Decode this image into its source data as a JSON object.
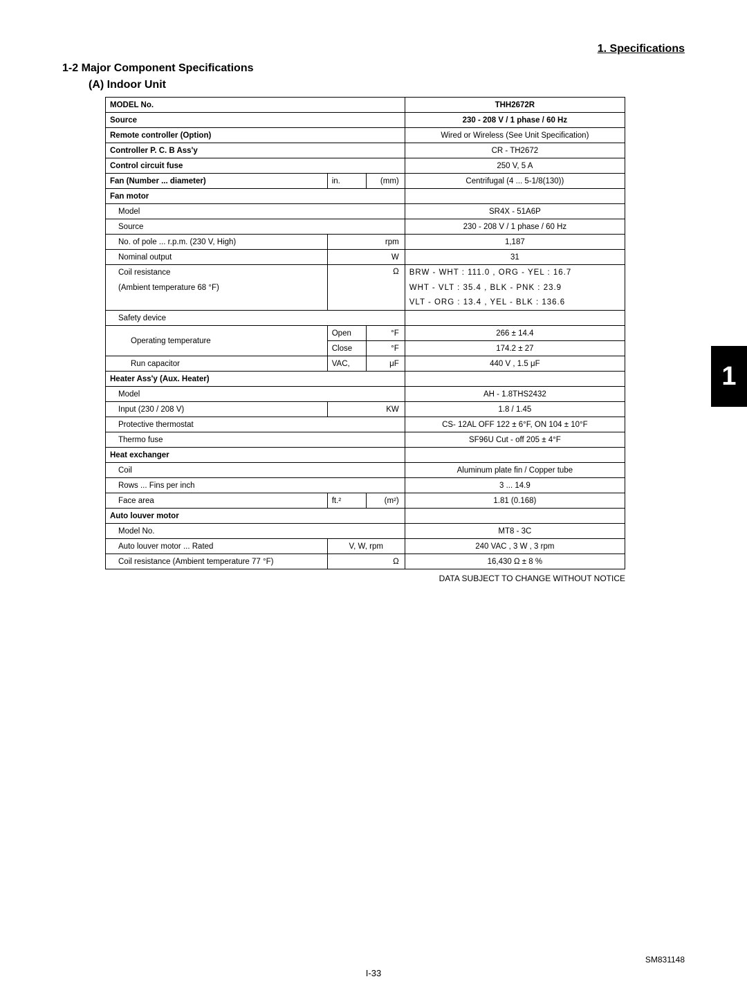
{
  "header": {
    "chapter": "1. Specifications",
    "section": "1-2   Major Component Specifications",
    "subsection": "(A)  Indoor Unit"
  },
  "table": {
    "model_no_label": "MODEL No.",
    "model_no_value": "THH2672R",
    "source_label": "Source",
    "source_value": "230 - 208 V / 1 phase / 60 Hz",
    "remote_label": "Remote  controller (Option)",
    "remote_value": "Wired or Wireless (See Unit Specification)",
    "controller_label": "Controller P. C. B Ass'y",
    "controller_value": "CR - TH2672",
    "fuse_label": "Control circuit fuse",
    "fuse_value": "250 V, 5 A",
    "fan_diameter_label": "Fan (Number ...  diameter)",
    "fan_diameter_unit_in": "in.",
    "fan_diameter_unit_mm": "(mm)",
    "fan_diameter_value": "Centrifugal (4 ... 5-1/8(130))",
    "fan_motor_label": "Fan motor",
    "fm_model_label": "Model",
    "fm_model_value": "SR4X - 51A6P",
    "fm_source_label": "Source",
    "fm_source_value": "230 - 208 V / 1 phase / 60 Hz",
    "fm_pole_label": "No. of pole ...  r.p.m. (230 V, High)",
    "fm_pole_unit": "rpm",
    "fm_pole_value": "1,187",
    "fm_nominal_label": "Nominal output",
    "fm_nominal_unit": "W",
    "fm_nominal_value": "31",
    "fm_coil_label": "Coil resistance",
    "fm_coil_unit": "Ω",
    "fm_coil_line1": "BRW - WHT   :    111.0   ,    ORG - YEL    :    16.7",
    "fm_ambient_label": "(Ambient temperature 68 °F)",
    "fm_coil_line2": "WHT - VLT    :     35.4   ,    BLK  -  PNK    :    23.9",
    "fm_coil_line3": "VLT  -  ORG    :     13.4   ,    YEL  -  BLK    :   136.6",
    "fm_safety_label": "Safety device",
    "fm_optemp_label": "Operating temperature",
    "fm_optemp_open": "Open",
    "fm_optemp_open_unit": "°F",
    "fm_optemp_open_value": "266    ±  14.4",
    "fm_optemp_close": "Close",
    "fm_optemp_close_unit": "°F",
    "fm_optemp_close_value": "174.2  ±   27",
    "fm_runcap_label": "Run capacitor",
    "fm_runcap_unit_left": "VAC,",
    "fm_runcap_unit_right": "μF",
    "fm_runcap_value": "440 V , 1.5 μF",
    "heater_label": "Heater Ass'y (Aux. Heater)",
    "heater_model_label": "Model",
    "heater_model_value": "AH - 1.8THS2432",
    "heater_input_label": "Input (230 / 208 V)",
    "heater_input_unit": "KW",
    "heater_input_value": "1.8 / 1.45",
    "heater_thermo_label": "Protective thermostat",
    "heater_thermo_value": "CS- 12AL OFF 122 ± 6°F, ON 104 ± 10°F",
    "heater_fuse_label": "Thermo fuse",
    "heater_fuse_value": "SF96U Cut - off 205 ± 4°F",
    "hex_label": "Heat exchanger",
    "hex_coil_label": "Coil",
    "hex_coil_value": "Aluminum plate fin / Copper tube",
    "hex_rows_label": "Rows ...  Fins per inch",
    "hex_rows_value": "3 ... 14.9",
    "hex_face_label": "Face area",
    "hex_face_unit_ft": "ft.²",
    "hex_face_unit_m": "(m²)",
    "hex_face_value": "1.81 (0.168)",
    "alm_label": "Auto louver motor",
    "alm_model_label": "Model No.",
    "alm_model_value": "MT8 - 3C",
    "alm_rated_label": "Auto louver motor ...  Rated",
    "alm_rated_unit": "V, W, rpm",
    "alm_rated_value": "240 VAC , 3 W , 3 rpm",
    "alm_coil_label": "Coil resistance (Ambient temperature 77 °F)",
    "alm_coil_unit": "Ω",
    "alm_coil_value": "16,430 Ω ± 8 %"
  },
  "footer": {
    "note": "DATA SUBJECT TO CHANGE WITHOUT NOTICE",
    "tab": "1",
    "doc_id": "SM831148",
    "page_number": "I-33"
  }
}
